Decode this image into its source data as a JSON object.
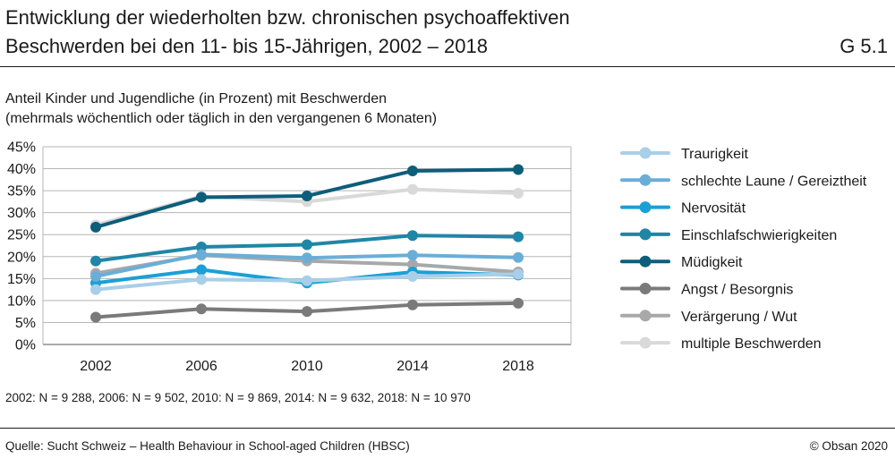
{
  "header": {
    "title_line1": "Entwicklung der wiederholten bzw. chronischen psychoaffektiven",
    "title_line2": "Beschwerden bei den 11- bis 15-Jährigen, 2002 – 2018",
    "code": "G 5.1"
  },
  "subtitle_line1": "Anteil Kinder und Jugendliche (in Prozent) mit Beschwerden",
  "subtitle_line2": "(mehrmals wöchentlich oder täglich in den vergangenen 6 Monaten)",
  "note": "2002: N = 9 288, 2006: N = 9 502, 2010: N = 9 869, 2014: N = 9 632, 2018: N = 10 970",
  "source": "Quelle: Sucht Schweiz – Health Behaviour in School-aged Children (HBSC)",
  "copyright": "© Obsan 2020",
  "chart_data": {
    "type": "line",
    "title": "Entwicklung der wiederholten bzw. chronischen psychoaffektiven Beschwerden bei den 11- bis 15-Jährigen, 2002 – 2018",
    "ylabel": "Anteil Kinder und Jugendliche (in Prozent) mit Beschwerden",
    "xlabel": "",
    "x": [
      "2002",
      "2006",
      "2010",
      "2014",
      "2018"
    ],
    "ylim": [
      0,
      45
    ],
    "yticks": [
      "0%",
      "5%",
      "10%",
      "15%",
      "20%",
      "25%",
      "30%",
      "35%",
      "40%",
      "45%"
    ],
    "grid": true,
    "legend_position": "right",
    "series": [
      {
        "name": "Traurigkeit",
        "color": "#a9cfe8",
        "values": [
          12.5,
          14.8,
          14.5,
          15.5,
          16.0
        ]
      },
      {
        "name": "schlechte Laune / Gereiztheit",
        "color": "#6aaed8",
        "values": [
          15.5,
          20.5,
          19.7,
          20.3,
          19.8
        ]
      },
      {
        "name": "Nervosität",
        "color": "#1ba0d5",
        "values": [
          14.0,
          17.0,
          14.0,
          16.5,
          15.8
        ]
      },
      {
        "name": "Einschlafschwierigkeiten",
        "color": "#1f86a6",
        "values": [
          19.0,
          22.2,
          22.7,
          24.8,
          24.5
        ]
      },
      {
        "name": "Müdigkeit",
        "color": "#0d5e7a",
        "values": [
          26.7,
          33.5,
          33.8,
          39.5,
          39.8
        ]
      },
      {
        "name": "Angst / Besorgnis",
        "color": "#7a7a7a",
        "values": [
          6.2,
          8.1,
          7.5,
          9.0,
          9.4
        ]
      },
      {
        "name": "Verärgerung / Wut",
        "color": "#a8a8a8",
        "values": [
          16.2,
          20.3,
          19.0,
          18.2,
          16.5
        ]
      },
      {
        "name": "multiple Beschwerden",
        "color": "#d9d9d9",
        "values": [
          27.2,
          33.7,
          32.5,
          35.3,
          34.4
        ]
      }
    ]
  }
}
